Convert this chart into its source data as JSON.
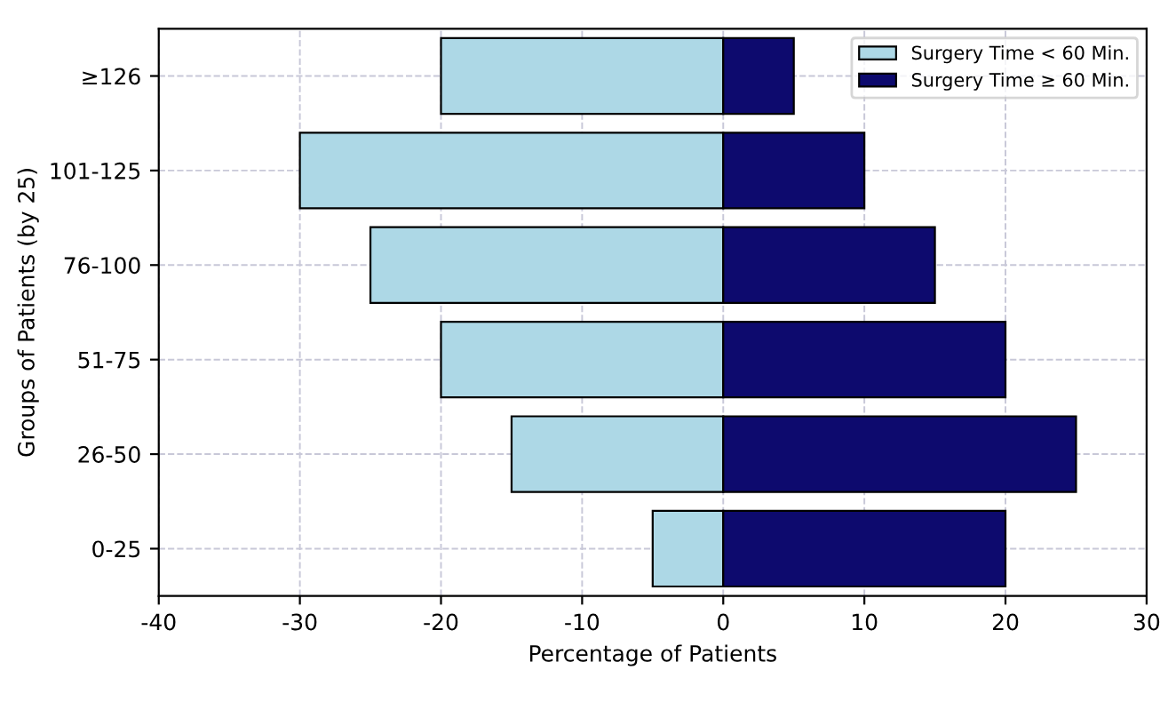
{
  "chart_data": {
    "type": "bar",
    "stacked": true,
    "orientation": "horizontal",
    "xlabel": "Percentage of Patients",
    "ylabel": "Groups of Patients (by 25)",
    "categories": [
      "≥126",
      "101-125",
      "76-100",
      "51-75",
      "26-50",
      "0-25"
    ],
    "series": [
      {
        "name": "Surgery Time < 60 Min.",
        "color": "#add8e6",
        "values": [
          -20,
          -30,
          -25,
          -20,
          -15,
          -5
        ]
      },
      {
        "name": "Surgery Time ≥ 60 Min.",
        "color": "#0d0a6e",
        "values": [
          5,
          10,
          15,
          20,
          25,
          20
        ]
      }
    ],
    "xlim": [
      -40,
      30
    ],
    "xticks": [
      -40,
      -30,
      -20,
      -10,
      0,
      10,
      20,
      30
    ],
    "grid": true,
    "legend": "top right"
  }
}
